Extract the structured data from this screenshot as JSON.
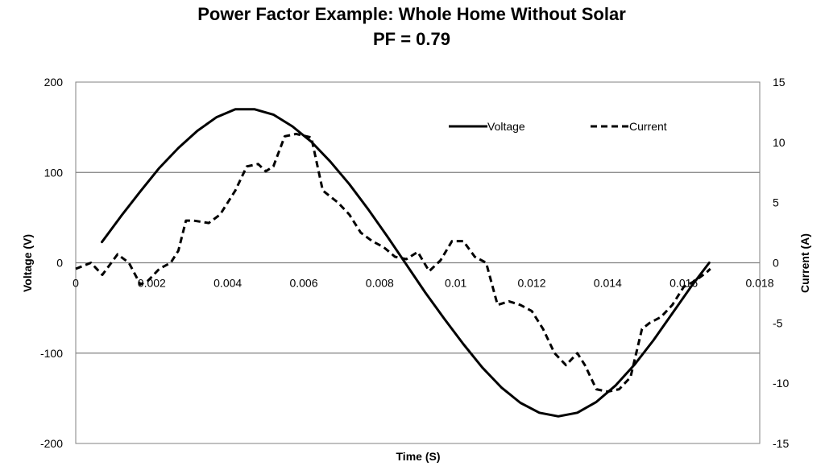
{
  "chart_data": {
    "type": "line",
    "title": "Power Factor Example: Whole Home Without Solar",
    "subtitle": "PF = 0.79",
    "xlabel": "Time (S)",
    "ylabel": "Voltage (V)",
    "y2label": "Current (A)",
    "xlim": [
      0,
      0.018
    ],
    "ylim": [
      -200,
      200
    ],
    "y2lim": [
      -15,
      15
    ],
    "x_ticks": [
      "0",
      "0.002",
      "0.004",
      "0.006",
      "0.008",
      "0.01",
      "0.012",
      "0.014",
      "0.016",
      "0.018"
    ],
    "x_tick_values": [
      0,
      0.002,
      0.004,
      0.006,
      0.008,
      0.01,
      0.012,
      0.014,
      0.016,
      0.018
    ],
    "y_ticks": [
      "200",
      "100",
      "0",
      "-100",
      "-200"
    ],
    "y_tick_values": [
      200,
      100,
      0,
      -100,
      -200
    ],
    "y2_ticks": [
      "15",
      "10",
      "5",
      "0",
      "-5",
      "-10",
      "-15"
    ],
    "y2_tick_values": [
      15,
      10,
      5,
      0,
      -5,
      -10,
      -15
    ],
    "grid": true,
    "legend_position": "top-right",
    "series": [
      {
        "name": "Voltage",
        "axis": "left",
        "style": "solid",
        "color": "#000000",
        "x": [
          0.00069,
          0.0012,
          0.0017,
          0.0022,
          0.0027,
          0.0032,
          0.0037,
          0.0042,
          0.0047,
          0.0052,
          0.0057,
          0.0062,
          0.0067,
          0.0072,
          0.0077,
          0.0082,
          0.0087,
          0.0092,
          0.0097,
          0.0102,
          0.0107,
          0.0112,
          0.0117,
          0.0122,
          0.0127,
          0.0132,
          0.0137,
          0.0142,
          0.0147,
          0.0152,
          0.0157,
          0.0162,
          0.01667
        ],
        "y": [
          23,
          52,
          79,
          105,
          127,
          146,
          161,
          170,
          170,
          164,
          151,
          134,
          112,
          87,
          59,
          29,
          -2,
          -33,
          -62,
          -90,
          -116,
          -138,
          -155,
          -166,
          -170,
          -166,
          -154,
          -136,
          -113,
          -86,
          -56,
          -26,
          0
        ]
      },
      {
        "name": "Current",
        "axis": "right",
        "style": "dashed",
        "color": "#000000",
        "x": [
          0.0,
          0.0004,
          0.0007,
          0.0011,
          0.0014,
          0.0017,
          0.0019,
          0.0022,
          0.0025,
          0.0027,
          0.0029,
          0.0031,
          0.0035,
          0.0038,
          0.0042,
          0.0045,
          0.0048,
          0.005,
          0.0052,
          0.0055,
          0.0058,
          0.0062,
          0.0065,
          0.0067,
          0.0069,
          0.0072,
          0.0075,
          0.0078,
          0.0081,
          0.0084,
          0.0087,
          0.009,
          0.0093,
          0.0096,
          0.0099,
          0.0102,
          0.0105,
          0.0108,
          0.0111,
          0.0114,
          0.0117,
          0.012,
          0.0123,
          0.0126,
          0.0129,
          0.0132,
          0.0134,
          0.0137,
          0.014,
          0.0143,
          0.0146,
          0.0149,
          0.0151,
          0.0154,
          0.0157,
          0.016,
          0.0163,
          0.0166,
          0.0167
        ],
        "y": [
          -0.5,
          0.0,
          -1.0,
          0.7,
          0.0,
          -1.8,
          -1.5,
          -0.5,
          0.0,
          1.0,
          3.5,
          3.5,
          3.3,
          4.0,
          6.0,
          8.0,
          8.2,
          7.6,
          8.0,
          10.5,
          10.7,
          10.4,
          6.0,
          5.5,
          5.0,
          4.0,
          2.5,
          1.8,
          1.3,
          0.5,
          0.3,
          0.9,
          -0.7,
          0.2,
          1.8,
          1.8,
          0.5,
          0.0,
          -3.5,
          -3.2,
          -3.5,
          -4.0,
          -5.5,
          -7.5,
          -8.5,
          -7.5,
          -8.5,
          -10.5,
          -10.7,
          -10.5,
          -9.5,
          -5.5,
          -5.0,
          -4.5,
          -3.5,
          -2.0,
          -1.5,
          -0.8,
          -0.5
        ]
      }
    ]
  }
}
